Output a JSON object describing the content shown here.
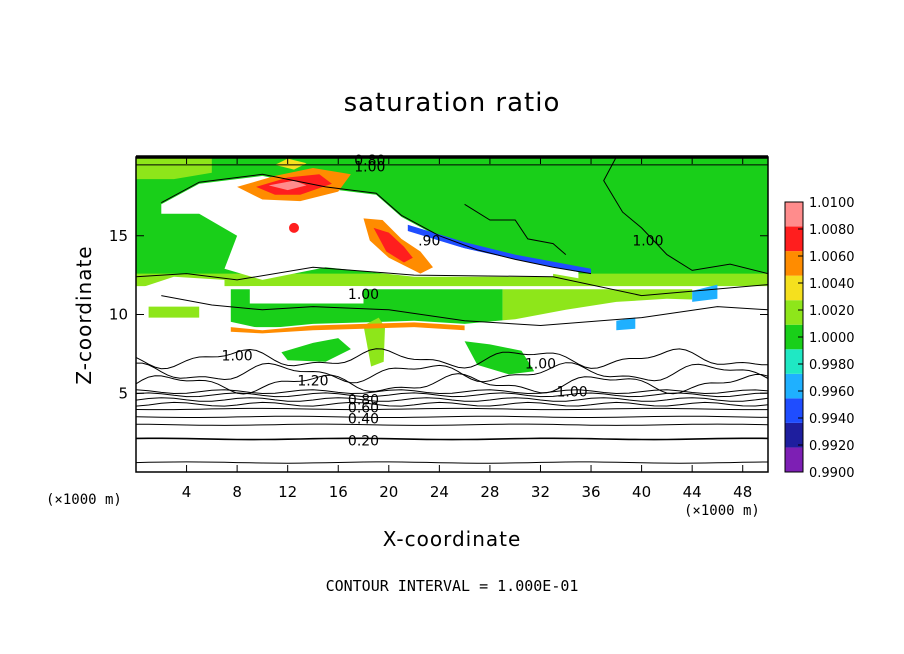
{
  "chart_data": {
    "type": "heatmap",
    "title": "saturation ratio",
    "xlabel": "X-coordinate",
    "ylabel": "Z-coordinate",
    "x_unit": "(×1000 m)",
    "contour_interval_text": "CONTOUR INTERVAL = 1.000E-01",
    "xlim": [
      0,
      50
    ],
    "ylim": [
      0,
      20
    ],
    "x_ticks": [
      4,
      8,
      12,
      16,
      20,
      24,
      28,
      32,
      36,
      40,
      44,
      48
    ],
    "y_ticks": [
      5,
      10,
      15
    ],
    "colorbar": {
      "ticks": [
        "0.9900",
        "0.9920",
        "0.9940",
        "0.9960",
        "0.9980",
        "1.0000",
        "1.0020",
        "1.0040",
        "1.0060",
        "1.0080",
        "1.0100"
      ],
      "colors": [
        "#7d1fb4",
        "#1e1e9e",
        "#1f4dff",
        "#1fb0ff",
        "#1fe8c4",
        "#19cf19",
        "#8ee61a",
        "#f5e01e",
        "#ff8c00",
        "#ff1e1e",
        "#ff8c8c"
      ]
    },
    "contour_labels": [
      {
        "text": "0.80",
        "x": 18.5,
        "z": 19.8
      },
      {
        "text": "1.00",
        "x": 18.5,
        "z": 19.4
      },
      {
        "text": ".90",
        "x": 23.2,
        "z": 14.7
      },
      {
        "text": "1.00",
        "x": 40.5,
        "z": 14.7
      },
      {
        "text": "1.00",
        "x": 18.0,
        "z": 11.3
      },
      {
        "text": "1.00",
        "x": 8.0,
        "z": 7.4
      },
      {
        "text": "1.20",
        "x": 14.0,
        "z": 5.8
      },
      {
        "text": "1.00",
        "x": 32.0,
        "z": 6.9
      },
      {
        "text": "1.00",
        "x": 34.5,
        "z": 5.1
      },
      {
        "text": "0.80",
        "x": 18.0,
        "z": 4.6
      },
      {
        "text": "0.60",
        "x": 18.0,
        "z": 4.1
      },
      {
        "text": "0.40",
        "x": 18.0,
        "z": 3.4
      },
      {
        "text": "0.20",
        "x": 18.0,
        "z": 2.0
      }
    ],
    "lower_contour_levels": [
      0.2,
      0.4,
      0.6,
      0.8
    ],
    "lower_contour_heights": [
      0.6,
      2.1,
      3.0,
      3.5,
      4.0,
      4.3,
      4.6,
      4.9,
      5.1
    ]
  }
}
